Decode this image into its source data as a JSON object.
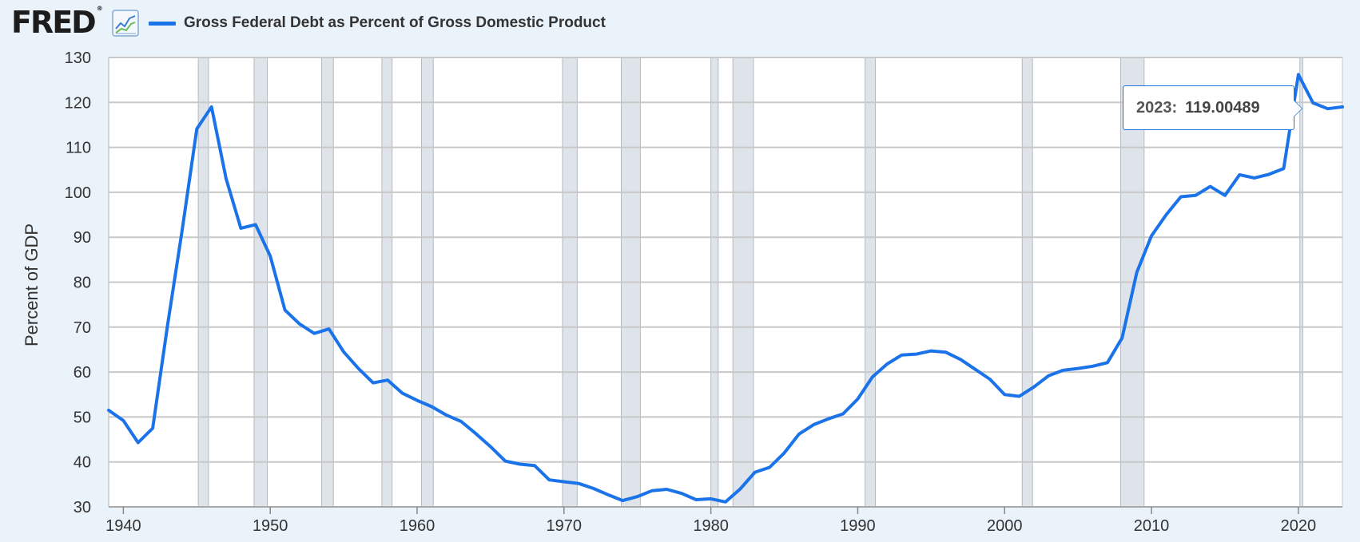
{
  "header": {
    "logo_text": "FRED",
    "logo_mark": "®",
    "graph_icon": "line-graph-icon",
    "series_label": "Gross Federal Debt as Percent of Gross Domestic Product"
  },
  "colors": {
    "line": "#1a73e8",
    "recession": "#dfe4ea",
    "grid": "#c8c8c8",
    "background": "#eaf2fa"
  },
  "tooltip": {
    "year": "2023:",
    "value": "119.00489"
  },
  "chart_data": {
    "type": "line",
    "title": "",
    "xlabel": "",
    "ylabel": "Percent of GDP",
    "xlim": [
      1939,
      2023
    ],
    "ylim": [
      30,
      130
    ],
    "x_ticks": [
      1940,
      1950,
      1960,
      1970,
      1980,
      1990,
      2000,
      2010,
      2020
    ],
    "y_ticks": [
      30,
      40,
      50,
      60,
      70,
      80,
      90,
      100,
      110,
      120,
      130
    ],
    "grid": true,
    "legend": "top-left",
    "recessions": [
      [
        1945.1,
        1945.8
      ],
      [
        1948.9,
        1949.8
      ],
      [
        1953.5,
        1954.3
      ],
      [
        1957.6,
        1958.3
      ],
      [
        1960.3,
        1961.1
      ],
      [
        1969.9,
        1970.9
      ],
      [
        1973.9,
        1975.2
      ],
      [
        1980.0,
        1980.5
      ],
      [
        1981.5,
        1982.9
      ],
      [
        1990.5,
        1991.2
      ],
      [
        2001.2,
        2001.9
      ],
      [
        2007.9,
        2009.5
      ],
      [
        2020.1,
        2020.3
      ]
    ],
    "series": [
      {
        "name": "Gross Federal Debt as Percent of Gross Domestic Product",
        "x": [
          1939,
          1940,
          1941,
          1942,
          1943,
          1944,
          1945,
          1946,
          1947,
          1948,
          1949,
          1950,
          1951,
          1952,
          1953,
          1954,
          1955,
          1956,
          1957,
          1958,
          1959,
          1960,
          1961,
          1962,
          1963,
          1964,
          1965,
          1966,
          1967,
          1968,
          1969,
          1970,
          1971,
          1972,
          1973,
          1974,
          1975,
          1976,
          1977,
          1978,
          1979,
          1980,
          1981,
          1982,
          1983,
          1984,
          1985,
          1986,
          1987,
          1988,
          1989,
          1990,
          1991,
          1992,
          1993,
          1994,
          1995,
          1996,
          1997,
          1998,
          1999,
          2000,
          2001,
          2002,
          2003,
          2004,
          2005,
          2006,
          2007,
          2008,
          2009,
          2010,
          2011,
          2012,
          2013,
          2014,
          2015,
          2016,
          2017,
          2018,
          2019,
          2020,
          2021,
          2022,
          2023
        ],
        "y": [
          51.5,
          49.2,
          44.3,
          47.5,
          70.2,
          91.5,
          114.1,
          119.0,
          103.0,
          92.0,
          92.8,
          85.8,
          73.8,
          70.7,
          68.6,
          69.6,
          64.5,
          60.8,
          57.6,
          58.2,
          55.3,
          53.7,
          52.3,
          50.4,
          49.0,
          46.3,
          43.4,
          40.2,
          39.5,
          39.2,
          36.0,
          35.6,
          35.2,
          34.1,
          32.7,
          31.4,
          32.3,
          33.6,
          33.9,
          33.0,
          31.6,
          31.8,
          31.1,
          34.0,
          37.7,
          38.8,
          42.0,
          46.2,
          48.3,
          49.6,
          50.7,
          54.0,
          58.9,
          61.8,
          63.8,
          64.0,
          64.7,
          64.4,
          62.8,
          60.6,
          58.4,
          55.0,
          54.6,
          56.7,
          59.2,
          60.4,
          60.8,
          61.3,
          62.1,
          67.6,
          82.2,
          90.3,
          95.0,
          99.0,
          99.3,
          101.3,
          99.3,
          103.9,
          103.2,
          104.0,
          105.3,
          126.2,
          119.9,
          118.6,
          119.0
        ]
      }
    ]
  }
}
